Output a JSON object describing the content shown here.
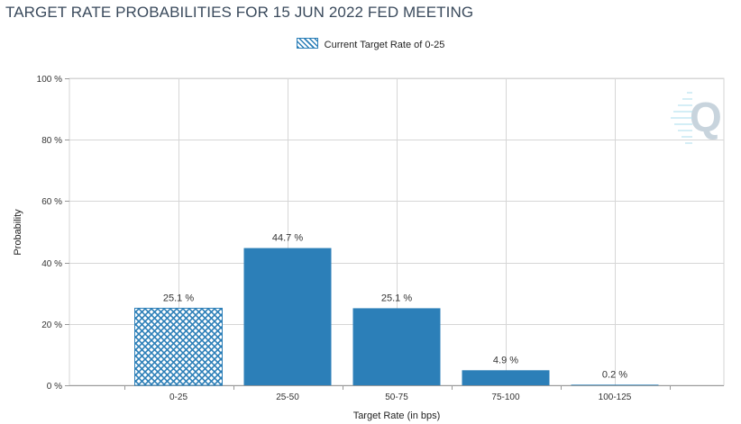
{
  "title": "TARGET RATE PROBABILITIES FOR 15 JUN 2022 FED MEETING",
  "legend": {
    "label": "Current Target Rate of 0-25"
  },
  "colors": {
    "bar": "#2c7fb8",
    "grid": "#d6d6d6",
    "axis": "#999999"
  },
  "watermark": {
    "icon": "q-logo-icon"
  },
  "chart_data": {
    "type": "bar",
    "title": "TARGET RATE PROBABILITIES FOR 15 JUN 2022 FED MEETING",
    "xlabel": "Target Rate (in bps)",
    "ylabel": "Probability",
    "categories": [
      "0-25",
      "25-50",
      "50-75",
      "75-100",
      "100-125"
    ],
    "values": [
      25.1,
      44.7,
      25.1,
      4.9,
      0.2
    ],
    "data_labels": [
      "25.1 %",
      "44.7 %",
      "25.1 %",
      "4.9 %",
      "0.2 %"
    ],
    "current_category": "0-25",
    "ylim": [
      0,
      100
    ],
    "yticks": [
      0,
      20,
      40,
      60,
      80,
      100
    ],
    "ytick_labels": [
      "0 %",
      "20 %",
      "40 %",
      "60 %",
      "80 %",
      "100 %"
    ],
    "grid": true,
    "legend_position": "top-center"
  }
}
